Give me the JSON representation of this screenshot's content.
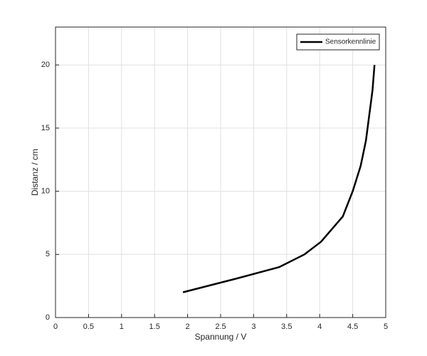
{
  "chart_data": {
    "type": "line",
    "xlabel": "Spannung / V",
    "ylabel": "Distanz / cm",
    "x": [
      1.93,
      2.75,
      3.39,
      3.77,
      4.02,
      4.35,
      4.5,
      4.62,
      4.7,
      4.75,
      4.8,
      4.83
    ],
    "series": [
      {
        "name": "Sensorkennlinie",
        "color": "#000000",
        "values": [
          2,
          3.1,
          4,
          5,
          6,
          8,
          10,
          12,
          14,
          16,
          18,
          20
        ]
      }
    ],
    "xlim": [
      0,
      5
    ],
    "xticks": [
      0,
      0.5,
      1,
      1.5,
      2,
      2.5,
      3,
      3.5,
      4,
      4.5,
      5
    ],
    "ylim": [
      0,
      23
    ],
    "yticks": [
      0,
      5,
      10,
      15,
      20
    ],
    "grid": true,
    "legend": "top-right"
  }
}
